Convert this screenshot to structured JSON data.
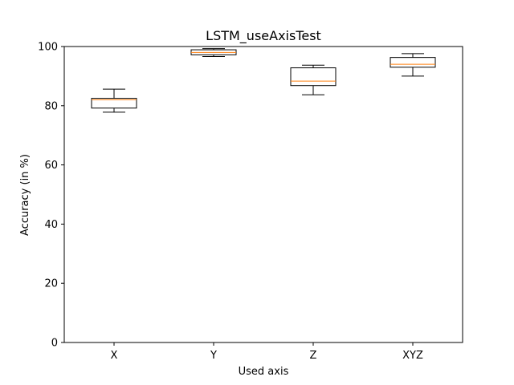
{
  "chart_data": {
    "type": "box",
    "title": "LSTM_useAxisTest",
    "xlabel": "Used axis",
    "ylabel": "Accuracy (in %)",
    "ylim": [
      0,
      100
    ],
    "yticks": [
      0,
      20,
      40,
      60,
      80,
      100
    ],
    "grid": false,
    "categories": [
      "X",
      "Y",
      "Z",
      "XYZ"
    ],
    "boxes": [
      {
        "category": "X",
        "whisker_low": 77.8,
        "q1": 79.2,
        "median": 82.0,
        "q3": 82.5,
        "whisker_high": 85.6
      },
      {
        "category": "Y",
        "whisker_low": 96.6,
        "q1": 97.2,
        "median": 98.0,
        "q3": 98.9,
        "whisker_high": 99.3
      },
      {
        "category": "Z",
        "whisker_low": 83.7,
        "q1": 86.8,
        "median": 88.3,
        "q3": 92.8,
        "whisker_high": 93.7
      },
      {
        "category": "XYZ",
        "whisker_low": 90.0,
        "q1": 93.0,
        "median": 94.0,
        "q3": 96.3,
        "whisker_high": 97.6
      }
    ],
    "colors": {
      "box": "#000000",
      "median": "#ff7f0e",
      "frame": "#000000"
    }
  }
}
